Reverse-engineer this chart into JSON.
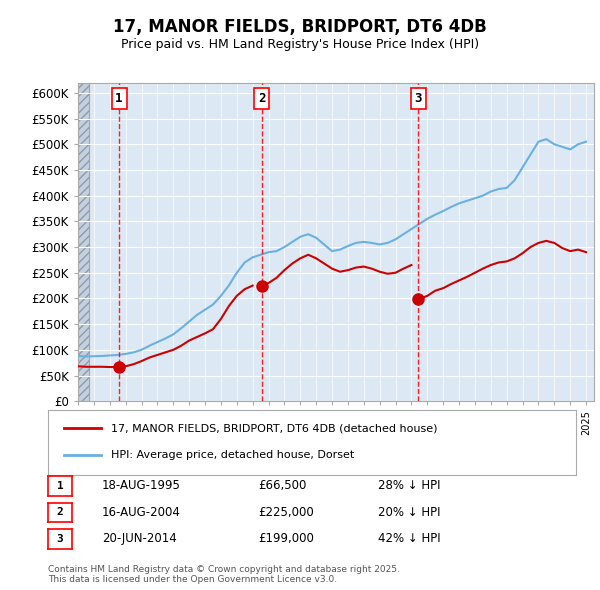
{
  "title": "17, MANOR FIELDS, BRIDPORT, DT6 4DB",
  "subtitle": "Price paid vs. HM Land Registry's House Price Index (HPI)",
  "ylabel": "",
  "ylim": [
    0,
    620000
  ],
  "yticks": [
    0,
    50000,
    100000,
    150000,
    200000,
    250000,
    300000,
    350000,
    400000,
    450000,
    500000,
    550000,
    600000
  ],
  "ytick_labels": [
    "£0",
    "£50K",
    "£100K",
    "£150K",
    "£200K",
    "£250K",
    "£300K",
    "£350K",
    "£400K",
    "£450K",
    "£500K",
    "£550K",
    "£600K"
  ],
  "hpi_color": "#6ab0e0",
  "price_color": "#cc0000",
  "dot_color": "#cc0000",
  "background_color": "#dce9f5",
  "grid_color": "#ffffff",
  "hatch_color": "#b0b8c8",
  "sale_dates": [
    "1995-08-18",
    "2004-08-16",
    "2014-06-20"
  ],
  "sale_prices": [
    66500,
    225000,
    199000
  ],
  "sale_labels": [
    "1",
    "2",
    "3"
  ],
  "legend_label_price": "17, MANOR FIELDS, BRIDPORT, DT6 4DB (detached house)",
  "legend_label_hpi": "HPI: Average price, detached house, Dorset",
  "table_rows": [
    {
      "label": "1",
      "date": "18-AUG-1995",
      "price": "£66,500",
      "note": "28% ↓ HPI"
    },
    {
      "label": "2",
      "date": "16-AUG-2004",
      "price": "£225,000",
      "note": "20% ↓ HPI"
    },
    {
      "label": "3",
      "date": "20-JUN-2014",
      "price": "£199,000",
      "note": "42% ↓ HPI"
    }
  ],
  "footer": "Contains HM Land Registry data © Crown copyright and database right 2025.\nThis data is licensed under the Open Government Licence v3.0.",
  "xlim_start": 1993.0,
  "xlim_end": 2025.5
}
